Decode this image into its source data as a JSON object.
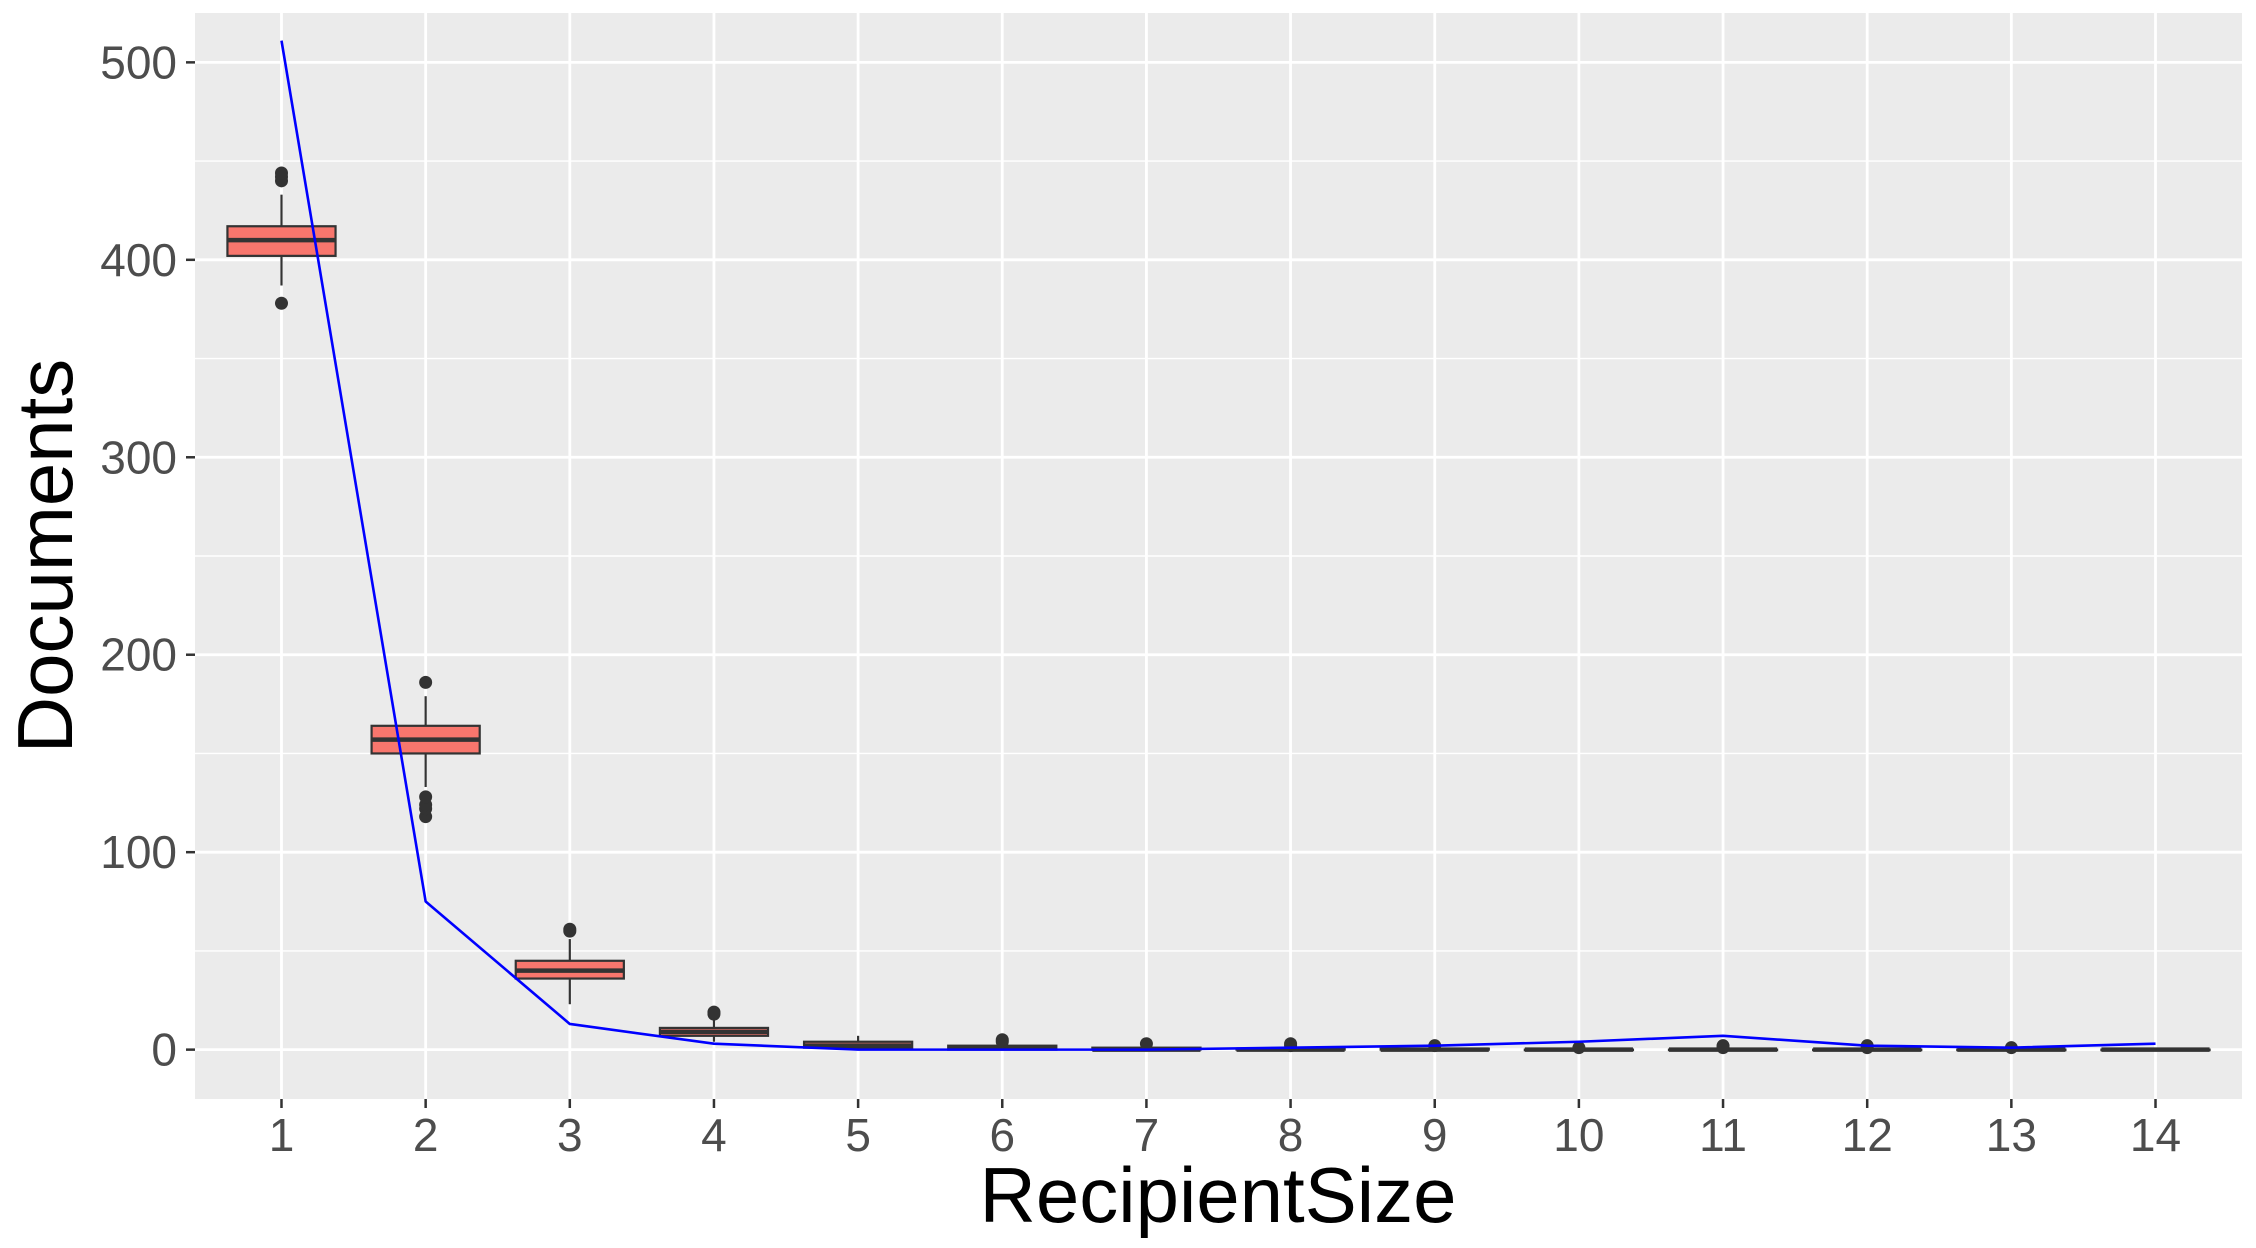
{
  "chart_data": {
    "type": "box",
    "xlabel": "RecipientSize",
    "ylabel": "Documents",
    "categories": [
      "1",
      "2",
      "3",
      "4",
      "5",
      "6",
      "7",
      "8",
      "9",
      "10",
      "11",
      "12",
      "13",
      "14"
    ],
    "y_ticks": [
      "0",
      "100",
      "200",
      "300",
      "400",
      "500"
    ],
    "ylim": [
      -25,
      525
    ],
    "grid": true,
    "legend": "none",
    "box_color": "#F8766D",
    "line_color": "#0000FF",
    "background_color": "#EBEBEB",
    "boxes": [
      {
        "x": 1,
        "lower_whisker": 387,
        "q1": 402,
        "median": 410,
        "q3": 417,
        "upper_whisker": 433,
        "outliers": [
          378,
          440,
          442,
          444
        ]
      },
      {
        "x": 2,
        "lower_whisker": 133,
        "q1": 150,
        "median": 157,
        "q3": 164,
        "upper_whisker": 179,
        "outliers": [
          118,
          122,
          124,
          128,
          186
        ]
      },
      {
        "x": 3,
        "lower_whisker": 23,
        "q1": 36,
        "median": 40,
        "q3": 45,
        "upper_whisker": 56,
        "outliers": [
          60,
          61
        ]
      },
      {
        "x": 4,
        "lower_whisker": 4,
        "q1": 7,
        "median": 9,
        "q3": 11,
        "upper_whisker": 16,
        "outliers": [
          18,
          19
        ]
      },
      {
        "x": 5,
        "lower_whisker": 0,
        "q1": 1,
        "median": 2,
        "q3": 4,
        "upper_whisker": 7,
        "outliers": []
      },
      {
        "x": 6,
        "lower_whisker": 0,
        "q1": 0,
        "median": 1,
        "q3": 2,
        "upper_whisker": 3,
        "outliers": [
          4,
          5
        ]
      },
      {
        "x": 7,
        "lower_whisker": 0,
        "q1": 0,
        "median": 0,
        "q3": 1,
        "upper_whisker": 2,
        "outliers": [
          3
        ]
      },
      {
        "x": 8,
        "lower_whisker": 0,
        "q1": 0,
        "median": 0,
        "q3": 0.5,
        "upper_whisker": 1,
        "outliers": [
          2,
          3
        ]
      },
      {
        "x": 9,
        "lower_whisker": 0,
        "q1": 0,
        "median": 0,
        "q3": 0.5,
        "upper_whisker": 1,
        "outliers": [
          2
        ]
      },
      {
        "x": 10,
        "lower_whisker": 0,
        "q1": 0,
        "median": 0,
        "q3": 0,
        "upper_whisker": 0,
        "outliers": [
          1
        ]
      },
      {
        "x": 11,
        "lower_whisker": 0,
        "q1": 0,
        "median": 0,
        "q3": 0,
        "upper_whisker": 0,
        "outliers": [
          1,
          2
        ]
      },
      {
        "x": 12,
        "lower_whisker": 0,
        "q1": 0,
        "median": 0,
        "q3": 0,
        "upper_whisker": 0,
        "outliers": [
          1,
          2
        ]
      },
      {
        "x": 13,
        "lower_whisker": 0,
        "q1": 0,
        "median": 0,
        "q3": 0,
        "upper_whisker": 0,
        "outliers": [
          1
        ]
      },
      {
        "x": 14,
        "lower_whisker": 0,
        "q1": 0,
        "median": 0,
        "q3": 0,
        "upper_whisker": 0,
        "outliers": []
      }
    ],
    "line": {
      "x": [
        1,
        2,
        3,
        4,
        5,
        6,
        7,
        8,
        9,
        10,
        11,
        12,
        13,
        14
      ],
      "y": [
        511,
        75,
        13,
        3,
        0,
        0,
        0,
        1,
        2,
        4,
        7,
        2,
        1,
        3
      ]
    }
  }
}
